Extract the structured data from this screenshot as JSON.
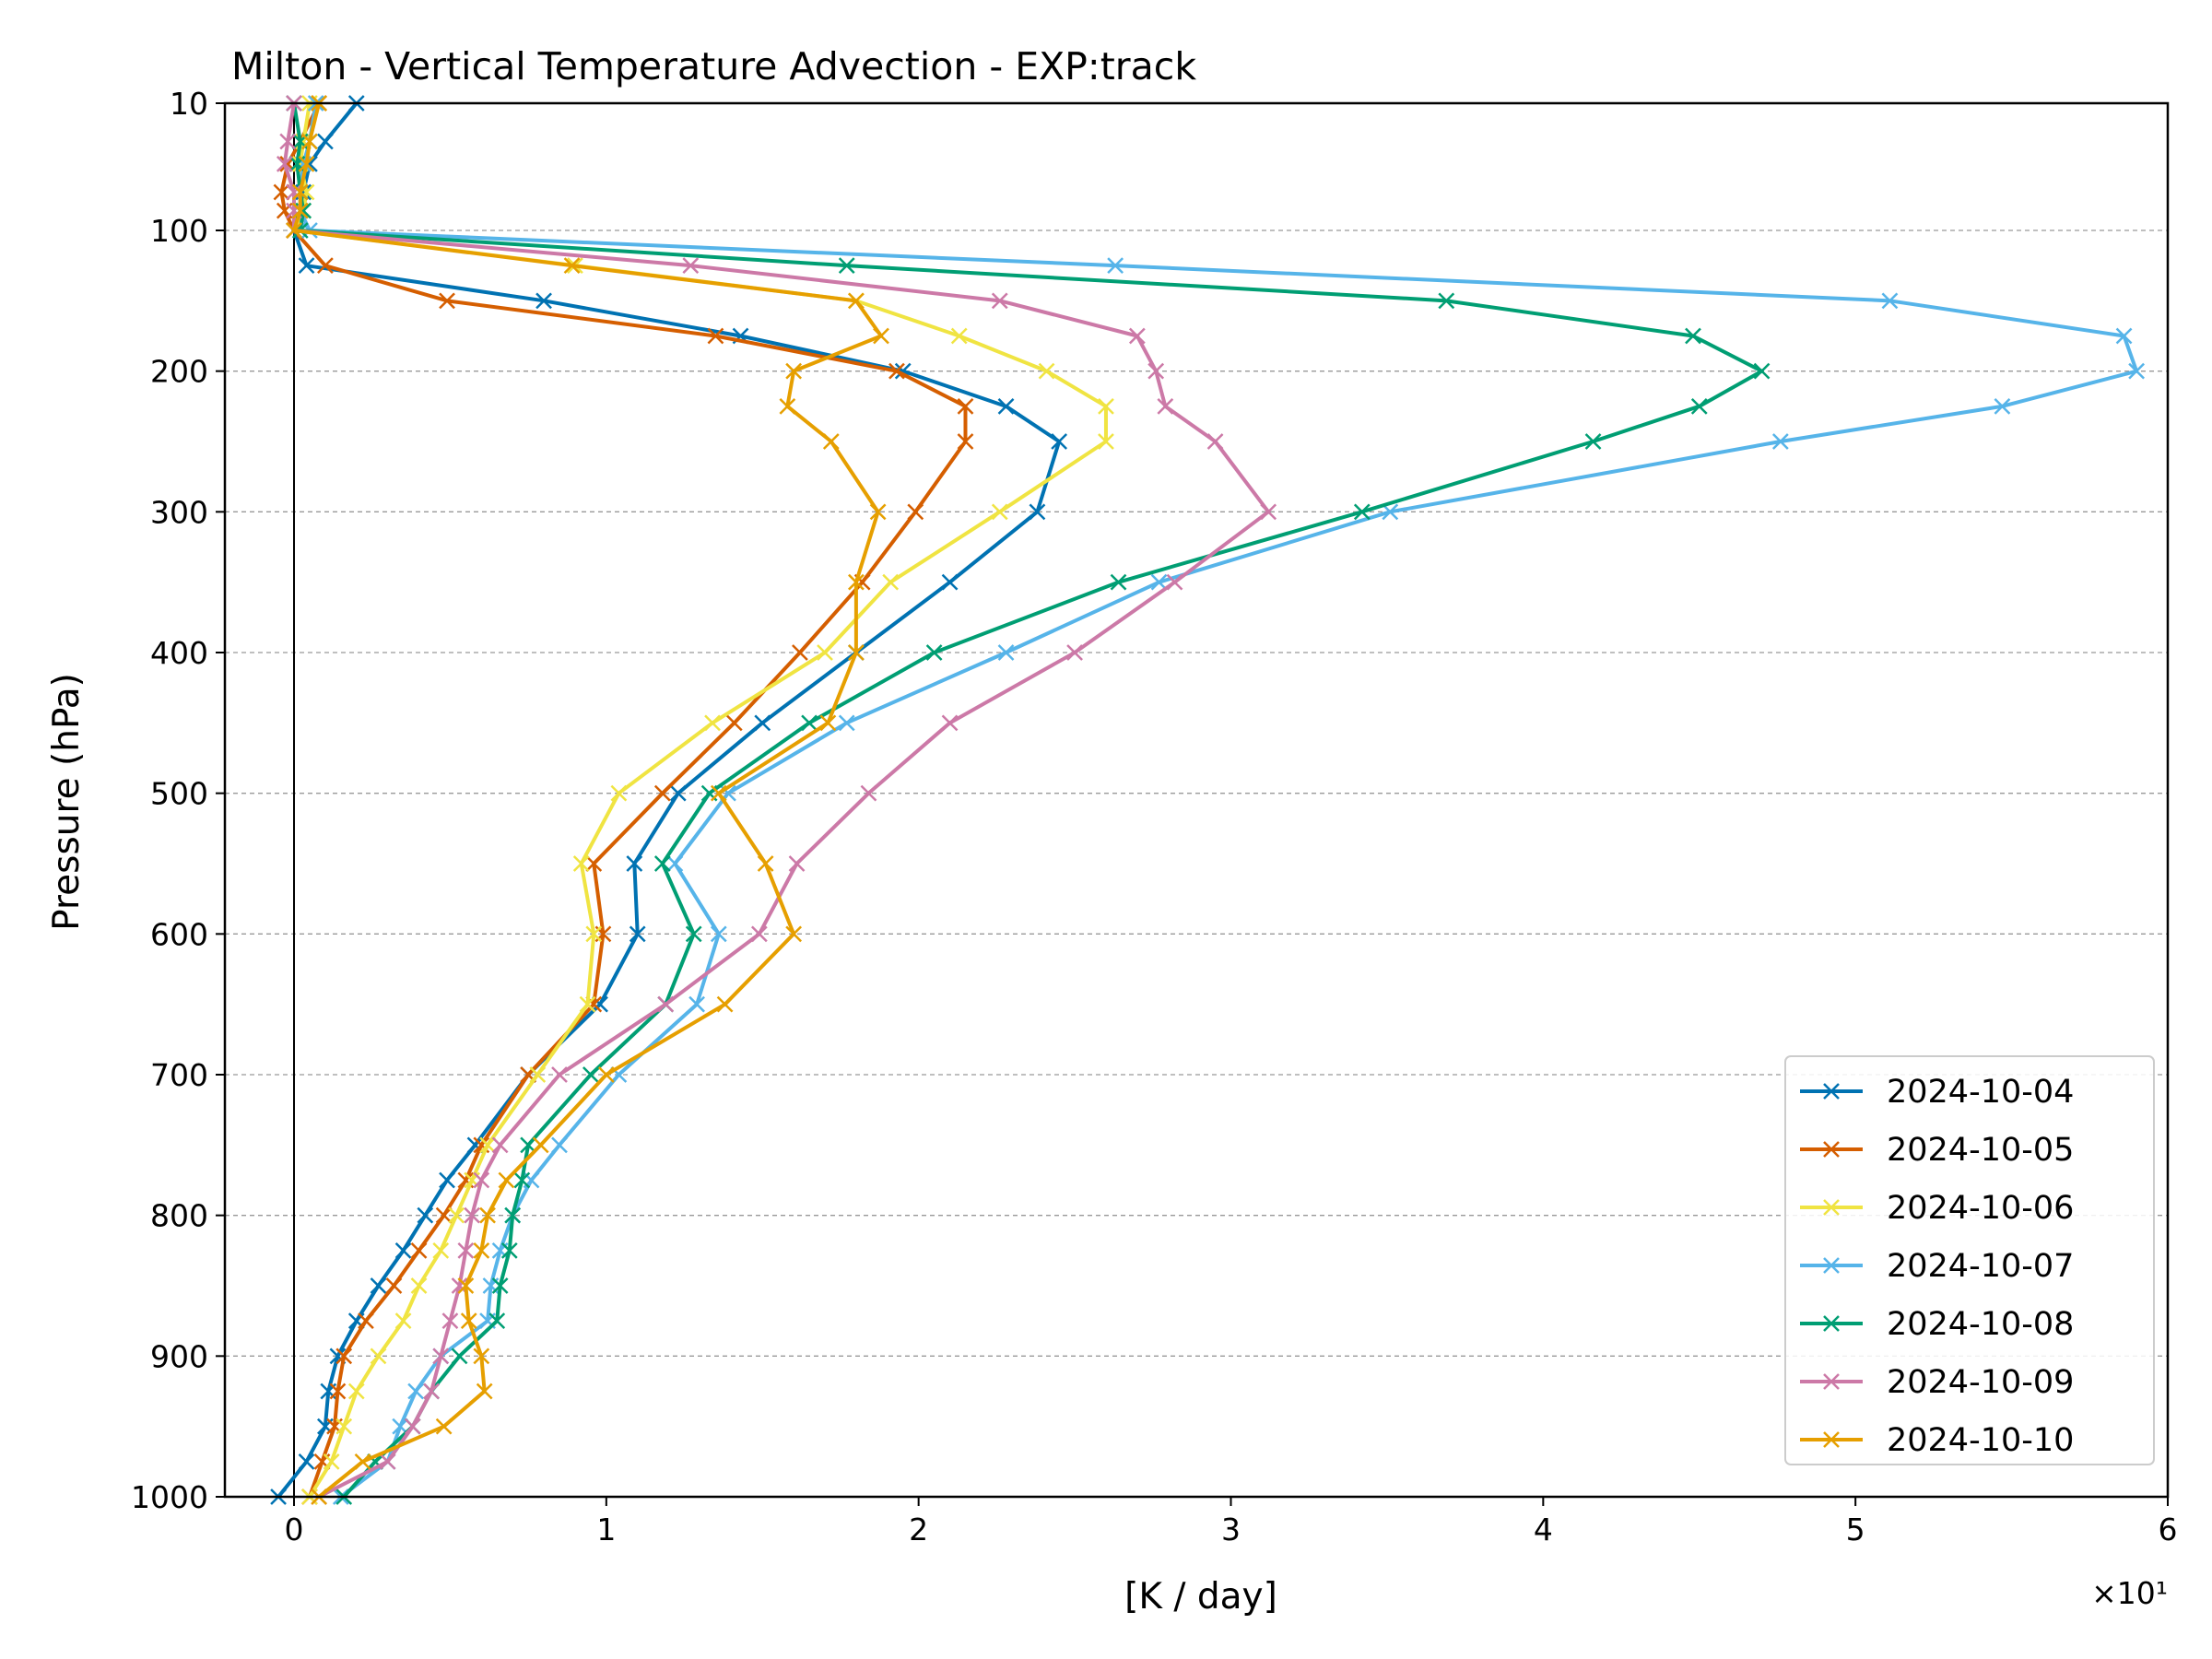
{
  "chart_data": {
    "type": "line",
    "title": "Milton - Vertical Temperature Advection - EXP:track",
    "xlabel": "[K / day]",
    "ylabel": "Pressure (hPa)",
    "x_scale_label": "×10¹",
    "xlim": [
      -0.2,
      6
    ],
    "ylim": [
      1000,
      10
    ],
    "x_ticks": [
      0,
      1,
      2,
      3,
      4,
      5,
      6
    ],
    "x_tick_labels": [
      "0",
      "1",
      "2",
      "3",
      "4",
      "5",
      "6"
    ],
    "y_ticks": [
      10,
      100,
      200,
      300,
      400,
      500,
      600,
      700,
      800,
      900,
      1000
    ],
    "y_tick_labels": [
      "10",
      "100",
      "200",
      "300",
      "400",
      "500",
      "600",
      "700",
      "800",
      "900",
      "1000"
    ],
    "y_grid": true,
    "x_grid": false,
    "zero_line": true,
    "marker": "x",
    "legend_position": "lower-right",
    "levels": [
      10,
      20,
      30,
      50,
      70,
      100,
      125,
      150,
      175,
      200,
      225,
      250,
      300,
      350,
      400,
      450,
      500,
      550,
      600,
      650,
      700,
      750,
      775,
      800,
      825,
      850,
      875,
      900,
      925,
      950,
      975,
      1000
    ],
    "series": [
      {
        "name": "2024-10-04",
        "color": "#0072b2",
        "values": [
          0.2,
          0.1,
          0.05,
          0.03,
          0.02,
          0.0,
          0.04,
          0.8,
          1.43,
          1.95,
          2.28,
          2.45,
          2.38,
          2.1,
          1.8,
          1.5,
          1.23,
          1.09,
          1.1,
          0.98,
          0.75,
          0.58,
          0.49,
          0.42,
          0.35,
          0.27,
          0.2,
          0.14,
          0.11,
          0.1,
          0.04,
          -0.05
        ]
      },
      {
        "name": "2024-10-05",
        "color": "#d55e00",
        "values": [
          0.08,
          0.02,
          -0.02,
          -0.04,
          -0.03,
          0.0,
          0.1,
          0.49,
          1.35,
          1.93,
          2.15,
          2.15,
          1.99,
          1.82,
          1.62,
          1.41,
          1.18,
          0.96,
          0.99,
          0.96,
          0.75,
          0.6,
          0.55,
          0.48,
          0.4,
          0.32,
          0.23,
          0.16,
          0.14,
          0.13,
          0.09,
          0.05
        ]
      },
      {
        "name": "2024-10-06",
        "color": "#f0e442",
        "values": [
          0.05,
          0.03,
          0.02,
          0.04,
          0.03,
          0.0,
          0.9,
          1.8,
          2.13,
          2.41,
          2.6,
          2.6,
          2.26,
          1.91,
          1.7,
          1.34,
          1.04,
          0.92,
          0.96,
          0.94,
          0.78,
          0.62,
          0.57,
          0.52,
          0.47,
          0.4,
          0.35,
          0.27,
          0.2,
          0.16,
          0.12,
          0.05
        ]
      },
      {
        "name": "2024-10-07",
        "color": "#56b4e9",
        "values": [
          0.07,
          0.05,
          0.03,
          0.02,
          0.02,
          0.05,
          2.63,
          5.11,
          5.86,
          5.9,
          5.47,
          4.76,
          3.51,
          2.77,
          2.28,
          1.77,
          1.39,
          1.22,
          1.36,
          1.29,
          1.04,
          0.85,
          0.76,
          0.7,
          0.66,
          0.63,
          0.62,
          0.47,
          0.39,
          0.34,
          0.3,
          0.15
        ]
      },
      {
        "name": "2024-10-08",
        "color": "#009e73",
        "values": [
          0.0,
          0.02,
          0.01,
          0.02,
          0.03,
          0.02,
          1.77,
          3.69,
          4.48,
          4.7,
          4.5,
          4.16,
          3.42,
          2.64,
          2.05,
          1.65,
          1.33,
          1.18,
          1.28,
          1.19,
          0.95,
          0.75,
          0.73,
          0.7,
          0.69,
          0.66,
          0.65,
          0.53,
          0.44,
          0.38,
          0.26,
          0.16
        ]
      },
      {
        "name": "2024-10-09",
        "color": "#cc79a7",
        "values": [
          0.0,
          -0.02,
          -0.03,
          0.0,
          0.0,
          0.0,
          1.27,
          2.26,
          2.7,
          2.76,
          2.79,
          2.95,
          3.12,
          2.82,
          2.5,
          2.1,
          1.84,
          1.61,
          1.49,
          1.19,
          0.85,
          0.66,
          0.6,
          0.57,
          0.55,
          0.53,
          0.5,
          0.47,
          0.44,
          0.38,
          0.3,
          0.08
        ]
      },
      {
        "name": "2024-10-10",
        "color": "#e69f00",
        "values": [
          0.08,
          0.05,
          0.04,
          0.02,
          0.02,
          0.0,
          0.89,
          1.8,
          1.88,
          1.6,
          1.58,
          1.72,
          1.87,
          1.8,
          1.8,
          1.71,
          1.36,
          1.51,
          1.6,
          1.38,
          1.0,
          0.79,
          0.68,
          0.62,
          0.6,
          0.55,
          0.56,
          0.6,
          0.61,
          0.48,
          0.22,
          0.08
        ]
      }
    ]
  }
}
